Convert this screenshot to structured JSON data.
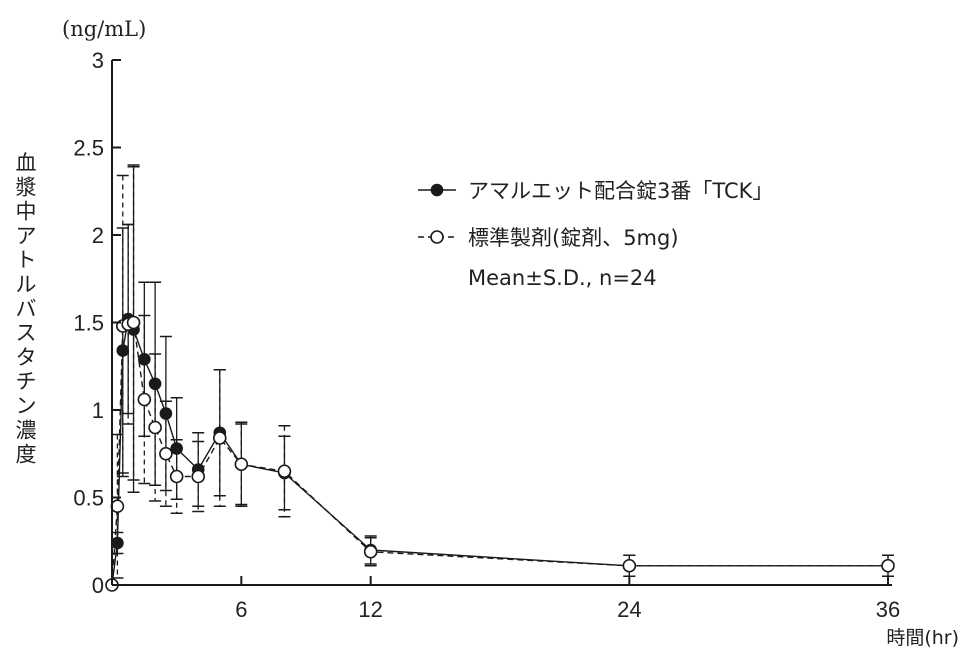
{
  "chart_data": {
    "type": "line",
    "title": "",
    "ylabel": "血漿中アトルバスタチン濃度",
    "y_unit": "(ng/mL)",
    "xlabel": "時間(hr)",
    "xlim": [
      0,
      36
    ],
    "ylim": [
      0,
      3
    ],
    "x_ticks": [
      "6",
      "12",
      "24",
      "36"
    ],
    "x_tick_values": [
      6,
      12,
      24,
      36
    ],
    "y_ticks": [
      "0",
      "0.5",
      "1",
      "1.5",
      "2",
      "2.5",
      "3"
    ],
    "y_tick_values": [
      0,
      0.5,
      1,
      1.5,
      2,
      2.5,
      3
    ],
    "series": [
      {
        "name": "アマルエット配合錠3番「TCK」",
        "marker": "filled-circle",
        "line": "solid",
        "color": "#1a1a1a",
        "x": [
          0,
          0.25,
          0.5,
          0.75,
          1,
          1.5,
          2,
          2.5,
          3,
          4,
          5,
          6,
          8,
          12,
          24,
          36
        ],
        "y": [
          0,
          0.24,
          1.34,
          1.52,
          1.46,
          1.29,
          1.15,
          0.98,
          0.78,
          0.66,
          0.87,
          0.69,
          0.64,
          0.2,
          0.11,
          0.11
        ],
        "sd": [
          0,
          0.06,
          0.7,
          0.54,
          0.93,
          0.44,
          0.58,
          0.44,
          0.29,
          0.21,
          0.36,
          0.23,
          0.21,
          0.08,
          0.06,
          0.06
        ]
      },
      {
        "name": "標準製剤(錠剤、5mg)",
        "marker": "open-circle",
        "line": "dashed",
        "color": "#1a1a1a",
        "x": [
          0,
          0.25,
          0.5,
          0.75,
          1,
          1.5,
          2,
          2.5,
          3,
          4,
          5,
          6,
          8,
          12,
          24,
          36
        ],
        "y": [
          0,
          0.45,
          1.48,
          1.49,
          1.5,
          1.06,
          0.9,
          0.75,
          0.62,
          0.62,
          0.84,
          0.69,
          0.65,
          0.19,
          0.11,
          0.11
        ],
        "sd": [
          0,
          0.41,
          0.86,
          0.57,
          0.9,
          0.48,
          0.42,
          0.3,
          0.21,
          0.2,
          0.39,
          0.24,
          0.26,
          0.08,
          0.06,
          0.06
        ]
      }
    ],
    "legend": {
      "position": "top-right",
      "items": [
        "アマルエット配合錠3番「TCK」",
        "標準製剤(錠剤、5mg)"
      ],
      "note": "Mean±S.D., n=24"
    }
  }
}
